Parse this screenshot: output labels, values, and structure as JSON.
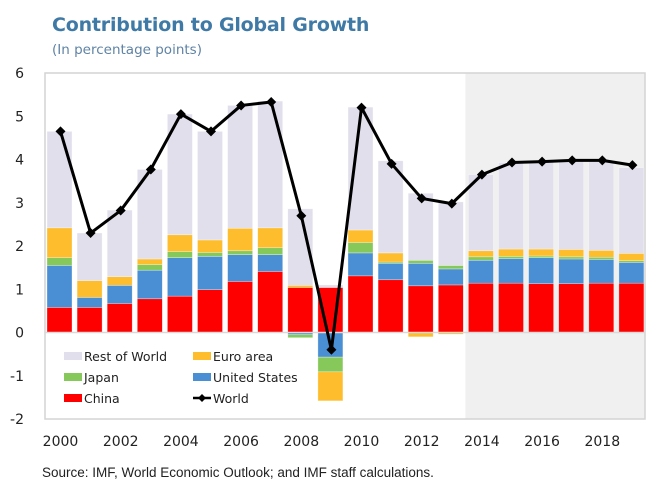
{
  "header": {
    "title": "Contribution to Global Growth",
    "subtitle": "(In percentage points)"
  },
  "footer": {
    "source": "Source: IMF, World Economic Outlook; and IMF staff calculations."
  },
  "colors": {
    "china": "#fe0000",
    "united_states": "#4a8fd4",
    "japan": "#86c95a",
    "euro_area": "#fdbd2c",
    "rest_of_world": "#e1dfeb",
    "world": "#000000",
    "projection_shade": "#f0f0f0",
    "title": "#3f7aa6"
  },
  "chart_data": {
    "type": "bar",
    "stacked": true,
    "title": "Contribution to Global Growth",
    "subtitle": "(In percentage points)",
    "xlabel": "",
    "ylabel": "",
    "ylim": [
      -2,
      6
    ],
    "yticks": [
      6,
      5,
      4,
      3,
      2,
      1,
      0,
      -1,
      -2
    ],
    "xtick_labels": [
      "2000",
      "2002",
      "2004",
      "2006",
      "2008",
      "2010",
      "2012",
      "2014",
      "2016",
      "2018"
    ],
    "categories": [
      "2000",
      "2001",
      "2002",
      "2003",
      "2004",
      "2005",
      "2006",
      "2007",
      "2008",
      "2009",
      "2010",
      "2011",
      "2012",
      "2013",
      "2014",
      "2015",
      "2016",
      "2017",
      "2018",
      "2019"
    ],
    "projection_start": "2014",
    "grid": false,
    "legend_position": "bottom-left",
    "series": [
      {
        "name": "China",
        "key": "china",
        "values": [
          0.58,
          0.58,
          0.67,
          0.78,
          0.84,
          0.99,
          1.18,
          1.41,
          1.04,
          1.04,
          1.31,
          1.22,
          1.08,
          1.1,
          1.14,
          1.14,
          1.13,
          1.13,
          1.14,
          1.14
        ]
      },
      {
        "name": "United States",
        "key": "united_states",
        "values": [
          0.97,
          0.23,
          0.42,
          0.66,
          0.89,
          0.77,
          0.62,
          0.39,
          -0.05,
          -0.57,
          0.53,
          0.38,
          0.52,
          0.37,
          0.53,
          0.57,
          0.6,
          0.57,
          0.55,
          0.48
        ]
      },
      {
        "name": "Japan",
        "key": "japan",
        "values": [
          0.18,
          0.0,
          0.0,
          0.13,
          0.14,
          0.09,
          0.09,
          0.16,
          -0.07,
          -0.34,
          0.24,
          0.03,
          0.07,
          0.08,
          0.08,
          0.05,
          0.04,
          0.05,
          0.05,
          0.04
        ]
      },
      {
        "name": "Euro area",
        "key": "euro_area",
        "values": [
          0.69,
          0.39,
          0.2,
          0.13,
          0.39,
          0.29,
          0.52,
          0.46,
          0.05,
          -0.67,
          0.29,
          0.21,
          -0.1,
          -0.04,
          0.14,
          0.17,
          0.16,
          0.17,
          0.16,
          0.17
        ]
      },
      {
        "name": "Rest of World",
        "key": "rest_of_world",
        "values": [
          2.23,
          1.1,
          1.54,
          2.07,
          2.79,
          2.51,
          2.84,
          2.93,
          1.77,
          0.06,
          2.84,
          2.13,
          1.55,
          1.47,
          1.76,
          2.0,
          2.02,
          2.06,
          2.07,
          1.98
        ]
      }
    ],
    "line_series": {
      "name": "World",
      "key": "world",
      "values": [
        4.65,
        2.3,
        2.82,
        3.77,
        5.05,
        4.65,
        5.25,
        5.33,
        2.7,
        -0.4,
        5.2,
        3.9,
        3.1,
        2.98,
        3.65,
        3.93,
        3.95,
        3.98,
        3.98,
        3.87
      ]
    },
    "legend": [
      {
        "label": "Rest of World",
        "key": "rest_of_world",
        "kind": "box"
      },
      {
        "label": "Euro area",
        "key": "euro_area",
        "kind": "box"
      },
      {
        "label": "Japan",
        "key": "japan",
        "kind": "box"
      },
      {
        "label": "United States",
        "key": "united_states",
        "kind": "box"
      },
      {
        "label": "China",
        "key": "china",
        "kind": "box"
      },
      {
        "label": "World",
        "key": "world",
        "kind": "line"
      }
    ]
  }
}
